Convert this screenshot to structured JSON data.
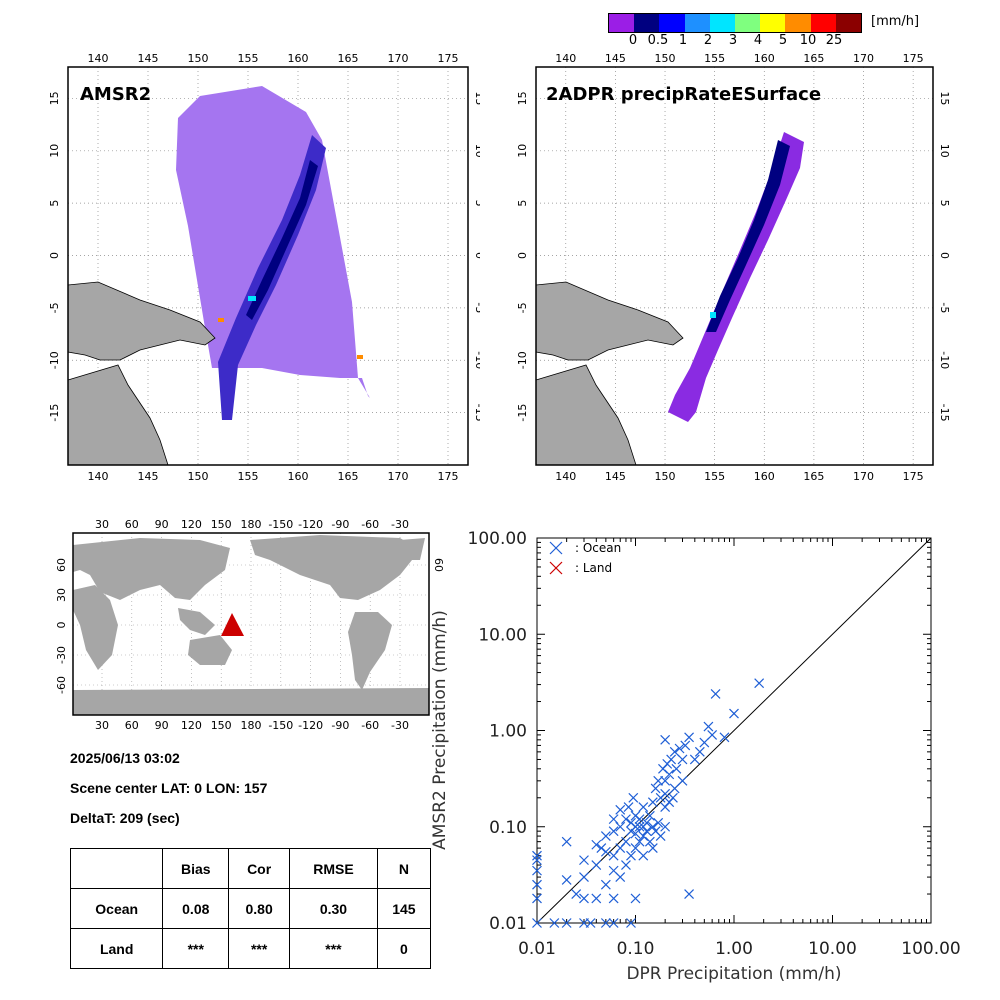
{
  "colorbar": {
    "unit": "[mm/h]",
    "colors": [
      "#9b1ee6",
      "#000080",
      "#0000ff",
      "#1e90ff",
      "#00e5ff",
      "#7fff7f",
      "#ffff00",
      "#ff8c00",
      "#ff0000",
      "#8b0000"
    ],
    "tick_labels": [
      "0",
      "0.5",
      "1",
      "2",
      "3",
      "4",
      "5",
      "10",
      "25"
    ]
  },
  "map_left": {
    "title": "AMSR2"
  },
  "map_right": {
    "title": "2ADPR precipRateESurface"
  },
  "map_axes": {
    "lon_labels": [
      "140",
      "145",
      "150",
      "155",
      "160",
      "165",
      "170",
      "175"
    ],
    "lat_labels": [
      "15",
      "10",
      "5",
      "0",
      "-5",
      "-10",
      "-15"
    ]
  },
  "world_map": {
    "lon_labels": [
      "30",
      "60",
      "90",
      "120",
      "150",
      "180",
      "-150",
      "-120",
      "-90",
      "-60",
      "-30"
    ],
    "lat_labels": [
      "60",
      "30",
      "0",
      "-30",
      "-60"
    ],
    "marker_color": "#cc0000"
  },
  "info": {
    "datetime": "2025/06/13 03:02",
    "scene_center": "Scene center LAT:  0   LON: 157",
    "deltat": "DeltaT:  209 (sec)"
  },
  "stats_table": {
    "headers": [
      "",
      "Bias",
      "Cor",
      "RMSE",
      "N"
    ],
    "rows": [
      [
        "Ocean",
        "0.08",
        "0.80",
        "0.30",
        "145"
      ],
      [
        "Land",
        "***",
        "***",
        "***",
        "0"
      ]
    ]
  },
  "chart_data": {
    "type": "scatter",
    "xlabel": "DPR Precipitation (mm/h)",
    "ylabel": "AMSR2 Precipitation (mm/h)",
    "scale": "log",
    "xlim": [
      0.01,
      100
    ],
    "ylim": [
      0.01,
      100
    ],
    "tick_labels": [
      "0.01",
      "0.10",
      "1.00",
      "10.00",
      "100.00"
    ],
    "legend": [
      "Ocean",
      "Land"
    ],
    "legend_position": "top-left",
    "colors": {
      "Ocean": "#1f5fd6",
      "Land": "#cc0000"
    },
    "series": [
      {
        "name": "Ocean",
        "points": [
          [
            0.01,
            0.01
          ],
          [
            0.01,
            0.018
          ],
          [
            0.01,
            0.025
          ],
          [
            0.01,
            0.035
          ],
          [
            0.01,
            0.045
          ],
          [
            0.01,
            0.05
          ],
          [
            0.015,
            0.01
          ],
          [
            0.02,
            0.01
          ],
          [
            0.02,
            0.028
          ],
          [
            0.02,
            0.07
          ],
          [
            0.025,
            0.02
          ],
          [
            0.03,
            0.01
          ],
          [
            0.03,
            0.018
          ],
          [
            0.03,
            0.03
          ],
          [
            0.03,
            0.045
          ],
          [
            0.035,
            0.01
          ],
          [
            0.04,
            0.018
          ],
          [
            0.04,
            0.04
          ],
          [
            0.04,
            0.065
          ],
          [
            0.045,
            0.06
          ],
          [
            0.05,
            0.01
          ],
          [
            0.05,
            0.025
          ],
          [
            0.05,
            0.055
          ],
          [
            0.05,
            0.08
          ],
          [
            0.06,
            0.01
          ],
          [
            0.06,
            0.018
          ],
          [
            0.06,
            0.035
          ],
          [
            0.06,
            0.05
          ],
          [
            0.06,
            0.09
          ],
          [
            0.06,
            0.12
          ],
          [
            0.07,
            0.03
          ],
          [
            0.07,
            0.06
          ],
          [
            0.07,
            0.1
          ],
          [
            0.07,
            0.15
          ],
          [
            0.08,
            0.04
          ],
          [
            0.08,
            0.07
          ],
          [
            0.08,
            0.12
          ],
          [
            0.085,
            0.16
          ],
          [
            0.09,
            0.01
          ],
          [
            0.09,
            0.05
          ],
          [
            0.09,
            0.09
          ],
          [
            0.09,
            0.11
          ],
          [
            0.095,
            0.2
          ],
          [
            0.1,
            0.018
          ],
          [
            0.1,
            0.06
          ],
          [
            0.1,
            0.085
          ],
          [
            0.1,
            0.1
          ],
          [
            0.1,
            0.13
          ],
          [
            0.11,
            0.07
          ],
          [
            0.11,
            0.1
          ],
          [
            0.11,
            0.12
          ],
          [
            0.12,
            0.05
          ],
          [
            0.12,
            0.08
          ],
          [
            0.12,
            0.1
          ],
          [
            0.12,
            0.16
          ],
          [
            0.13,
            0.09
          ],
          [
            0.13,
            0.11
          ],
          [
            0.14,
            0.07
          ],
          [
            0.14,
            0.13
          ],
          [
            0.15,
            0.06
          ],
          [
            0.15,
            0.1
          ],
          [
            0.15,
            0.18
          ],
          [
            0.16,
            0.09
          ],
          [
            0.16,
            0.25
          ],
          [
            0.17,
            0.11
          ],
          [
            0.17,
            0.3
          ],
          [
            0.18,
            0.08
          ],
          [
            0.18,
            0.2
          ],
          [
            0.19,
            0.4
          ],
          [
            0.2,
            0.1
          ],
          [
            0.2,
            0.16
          ],
          [
            0.2,
            0.22
          ],
          [
            0.2,
            0.3
          ],
          [
            0.2,
            0.8
          ],
          [
            0.21,
            0.45
          ],
          [
            0.22,
            0.18
          ],
          [
            0.22,
            0.35
          ],
          [
            0.23,
            0.5
          ],
          [
            0.24,
            0.2
          ],
          [
            0.25,
            0.25
          ],
          [
            0.25,
            0.6
          ],
          [
            0.26,
            0.4
          ],
          [
            0.28,
            0.65
          ],
          [
            0.3,
            0.3
          ],
          [
            0.3,
            0.5
          ],
          [
            0.32,
            0.7
          ],
          [
            0.35,
            0.02
          ],
          [
            0.35,
            0.85
          ],
          [
            0.4,
            0.5
          ],
          [
            0.45,
            0.6
          ],
          [
            0.5,
            0.75
          ],
          [
            0.55,
            1.1
          ],
          [
            0.6,
            0.9
          ],
          [
            0.65,
            2.4
          ],
          [
            0.8,
            0.85
          ],
          [
            1.0,
            1.5
          ],
          [
            1.8,
            3.1
          ]
        ]
      },
      {
        "name": "Land",
        "points": []
      }
    ]
  }
}
